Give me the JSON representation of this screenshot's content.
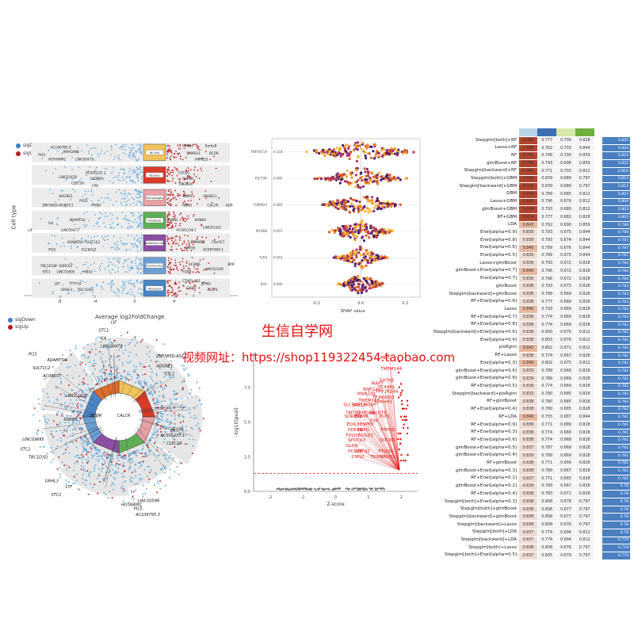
{
  "legend": {
    "down": "sigDown",
    "up": "sigUp",
    "down_color": "#3a7fc1",
    "up_color": "#b01f24"
  },
  "colors": {
    "sig_down": "#6aaee0",
    "sig_up": "#c4282b",
    "accent_red": "#e01010"
  },
  "deg_panel": {
    "ylabel": "Cell type",
    "xlabel": "Average log2FoldChange",
    "xticks": [
      "-8",
      "-4",
      "0",
      "4"
    ],
    "clusters": [
      {
        "name": "NK cells",
        "color": "#f0c35c"
      },
      {
        "name": "Neurons",
        "color": "#d93b2b"
      },
      {
        "name": "Macrophages",
        "color": "#e8a2a7"
      },
      {
        "name": "Fibroblasts",
        "color": "#5fae57"
      },
      {
        "name": "Endothelial cells",
        "color": "#8a4fa3"
      },
      {
        "name": "Chondrocytes",
        "color": "#6a9fd4"
      },
      {
        "name": "Astrocytes",
        "color": "#4a86c7"
      }
    ],
    "labels": [
      [
        "AC106795.3",
        0.13,
        0.04
      ],
      [
        "PI15",
        0.07,
        0.09
      ],
      [
        "HOTAIRM1",
        0.12,
        0.12
      ],
      [
        "ARHGAP8",
        0.19,
        0.07
      ],
      [
        "LINC00473",
        0.25,
        0.12
      ],
      [
        "PRPN4",
        0.77,
        0.03
      ],
      [
        "Sorbs8",
        0.88,
        0.03
      ],
      [
        "SAMD11",
        0.79,
        0.08
      ],
      [
        "BCOR",
        0.9,
        0.08
      ],
      [
        "AMPL22",
        0.83,
        0.12
      ],
      [
        "LINC02470",
        0.17,
        0.24
      ],
      [
        "AC005237.1",
        0.3,
        0.21
      ],
      [
        "CADPS5",
        0.32,
        0.25
      ],
      [
        "CLEC2A",
        0.23,
        0.28
      ],
      [
        "CPB",
        0.33,
        0.3
      ],
      [
        "CXCD1",
        0.75,
        0.21
      ],
      [
        "RHPN1",
        0.77,
        0.25
      ],
      [
        "TMEM26",
        0.75,
        0.29
      ],
      [
        "ADGRE1",
        0.17,
        0.37
      ],
      [
        "PI15",
        0.27,
        0.4
      ],
      [
        "ZNF385D-AS1",
        0.09,
        0.43
      ],
      [
        "STC1",
        0.2,
        0.43
      ],
      [
        "THBD",
        0.33,
        0.43
      ],
      [
        "TRIP6",
        0.77,
        0.37
      ],
      [
        "ABHD11",
        0.87,
        0.37
      ],
      [
        "RBM2",
        0.77,
        0.43
      ],
      [
        "CALCR",
        0.89,
        0.43
      ],
      [
        "ADR",
        0.98,
        0.43
      ],
      [
        "ADAMTS4",
        0.22,
        0.53
      ],
      [
        "IL6",
        0.12,
        0.55
      ],
      [
        "LIF",
        0.02,
        0.6
      ],
      [
        "LINC00473",
        0.18,
        0.6
      ],
      [
        "KANK4",
        0.83,
        0.53
      ],
      [
        "LINC01322",
        0.87,
        0.58
      ],
      [
        "ABHD",
        0.7,
        0.53
      ],
      [
        "AC005238.1",
        0.74,
        0.6
      ],
      [
        "ADAMTS4",
        0.21,
        0.68
      ],
      [
        "SULT1C2",
        0.3,
        0.68
      ],
      [
        "PI15",
        0.12,
        0.73
      ],
      [
        "SLC6A17",
        0.28,
        0.73
      ],
      [
        "TMEM56",
        0.81,
        0.68
      ],
      [
        "C5orf17",
        0.91,
        0.68
      ],
      [
        "SRP19",
        0.78,
        0.72
      ],
      [
        "AC097460.1",
        0.87,
        0.73
      ],
      [
        "TBC1D3D",
        0.08,
        0.84
      ],
      [
        "SORCS3",
        0.17,
        0.84
      ],
      [
        "STC1",
        0.09,
        0.88
      ],
      [
        "LINC01695",
        0.16,
        0.88
      ],
      [
        "HBA2",
        0.29,
        0.88
      ],
      [
        "ACSM5",
        0.8,
        0.83
      ],
      [
        "LINC02249",
        0.88,
        0.86
      ],
      [
        "BMF",
        0.99,
        0.83
      ],
      [
        "FOXB",
        0.77,
        0.88
      ],
      [
        "LTF",
        0.15,
        0.96
      ],
      [
        "TTTY10",
        0.22,
        0.96
      ],
      [
        "GRHL3",
        0.18,
        1.0
      ],
      [
        "TBC1D3D",
        0.26,
        1.0
      ],
      [
        "CTAP1-AS1",
        0.77,
        0.94
      ],
      [
        "JEFN3",
        0.86,
        0.96
      ],
      [
        "CHYB",
        0.79,
        0.99
      ],
      [
        "ZGLP1",
        0.89,
        1.0
      ]
    ]
  },
  "shap_panel": {
    "xlabel": "SHAP value",
    "xticks": [
      "-0.2",
      "0.0",
      "0.2"
    ],
    "features": [
      {
        "name": "TNFRSF1A",
        "value": "0.118"
      },
      {
        "name": "RICTOR",
        "value": "0.095"
      },
      {
        "name": "TOMM20",
        "value": "0.083"
      },
      {
        "name": "MYD88",
        "value": "0.057"
      },
      {
        "name": "TLR4",
        "value": "0.053"
      },
      {
        "name": "BAX",
        "value": "0.040"
      }
    ]
  },
  "heatmap_panel": {
    "header_colors": [
      "#b8d3e8",
      "#3e6fb0",
      "#d6e9a8",
      "#6fae3f"
    ],
    "rows": [
      [
        "Stepglm[both]+RF",
        "0.989",
        "0.777",
        "0.709",
        "0.828",
        "0.825"
      ],
      [
        "Lasso+RF",
        "0.988",
        "0.762",
        "0.703",
        "0.844",
        "0.824"
      ],
      [
        "RF",
        "0.991",
        "0.746",
        "0.700",
        "0.859",
        "0.824"
      ],
      [
        "glmBoost+RF",
        "0.989",
        "0.743",
        "0.696",
        "0.859",
        "0.822"
      ],
      [
        "Stepglm[backward]+RF",
        "0.987",
        "0.771",
        "0.703",
        "0.812",
        "0.818"
      ],
      [
        "Stepglm[both]+GBM",
        "0.928",
        "0.839",
        "0.689",
        "0.797",
        "0.813"
      ],
      [
        "Stepglm[backward]+GBM",
        "0.928",
        "0.839",
        "0.689",
        "0.797",
        "0.812"
      ],
      [
        "GBM",
        "0.939",
        "0.789",
        "0.685",
        "0.812",
        "0.807"
      ],
      [
        "Lasso+GBM",
        "0.933",
        "0.796",
        "0.676",
        "0.812",
        "0.804"
      ],
      [
        "glmBoost+GBM",
        "0.924",
        "0.793",
        "0.680",
        "0.812",
        "0.803"
      ],
      [
        "RF+GBM",
        "0.924",
        "0.777",
        "0.682",
        "0.828",
        "0.803"
      ],
      [
        "LDA",
        "0.843",
        "0.762",
        "0.690",
        "0.859",
        "0.788"
      ],
      [
        "Enet[alpha=0.9]",
        "0.839",
        "0.793",
        "0.675",
        "0.844",
        "0.788"
      ],
      [
        "Enet[alpha=0.8]",
        "0.839",
        "0.793",
        "0.674",
        "0.844",
        "0.787"
      ],
      [
        "Enet[alpha=0.6]",
        "0.840",
        "0.789",
        "0.676",
        "0.844",
        "0.787"
      ],
      [
        "Enet[alpha=0.5]",
        "0.839",
        "0.789",
        "0.675",
        "0.844",
        "0.787"
      ],
      [
        "Lasso+glmBoost",
        "0.839",
        "0.793",
        "0.672",
        "0.828",
        "0.784"
      ],
      [
        "glmBoost+Enet[alpha=0.7]",
        "0.840",
        "0.796",
        "0.672",
        "0.828",
        "0.784"
      ],
      [
        "Enet[alpha=0.7]",
        "0.839",
        "0.796",
        "0.672",
        "0.828",
        "0.784"
      ],
      [
        "glmBoost",
        "0.838",
        "0.793",
        "0.673",
        "0.828",
        "0.783"
      ],
      [
        "Stepglm[backward]+glmBoost",
        "0.838",
        "0.789",
        "0.669",
        "0.828",
        "0.783"
      ],
      [
        "RF+Enet[alpha=0.6]",
        "0.838",
        "0.777",
        "0.668",
        "0.828",
        "0.783"
      ],
      [
        "Lasso",
        "0.840",
        "0.793",
        "0.669",
        "0.828",
        "0.783"
      ],
      [
        "RF+Enet[alpha=0.7]",
        "0.838",
        "0.774",
        "0.669",
        "0.828",
        "0.783"
      ],
      [
        "RF+Enet[alpha=0.8]",
        "0.838",
        "0.774",
        "0.669",
        "0.828",
        "0.782"
      ],
      [
        "Stepglm[backward]+Enet[alpha=0.6]",
        "0.838",
        "0.800",
        "0.676",
        "0.812",
        "0.782"
      ],
      [
        "Enet[alpha=0.4]",
        "0.838",
        "0.803",
        "0.676",
        "0.812",
        "0.782"
      ],
      [
        "plsRglm",
        "0.842",
        "0.802",
        "0.671",
        "0.812",
        "0.782"
      ],
      [
        "RF+Lasso",
        "0.838",
        "0.774",
        "0.667",
        "0.828",
        "0.782"
      ],
      [
        "Enet[alpha=0.3]",
        "0.840",
        "0.802",
        "0.675",
        "0.812",
        "0.782"
      ],
      [
        "glmBoost+Enet[alpha=0.6]",
        "0.839",
        "0.789",
        "0.669",
        "0.828",
        "0.782"
      ],
      [
        "glmBoost+Enet[alpha=0.8]",
        "0.839",
        "0.789",
        "0.669",
        "0.828",
        "0.782"
      ],
      [
        "RF+Enet[alpha=0.5]",
        "0.838",
        "0.774",
        "0.669",
        "0.828",
        "0.782"
      ],
      [
        "Stepglm[backward]+plsRglm",
        "0.833",
        "0.780",
        "0.685",
        "0.828",
        "0.782"
      ],
      [
        "RF+glmBoost",
        "0.838",
        "0.780",
        "0.685",
        "0.828",
        "0.782"
      ],
      [
        "RF+Enet[alpha=0.4]",
        "0.838",
        "0.780",
        "0.685",
        "0.828",
        "0.782"
      ],
      [
        "RF+LDA",
        "0.840",
        "0.755",
        "0.687",
        "0.844",
        "0.781"
      ],
      [
        "RF+Enet[alpha=0.9]",
        "0.838",
        "0.771",
        "0.689",
        "0.828",
        "0.781"
      ],
      [
        "RF+Enet[alpha=0.3]",
        "0.838",
        "0.774",
        "0.668",
        "0.828",
        "0.781"
      ],
      [
        "RF+Enet[alpha=0.6]",
        "0.838",
        "0.774",
        "0.668",
        "0.828",
        "0.781"
      ],
      [
        "glmBoost+Enet[alpha=0.5]",
        "0.837",
        "0.787",
        "0.669",
        "0.828",
        "0.781"
      ],
      [
        "glmBoost+Enet[alpha=0.4]",
        "0.839",
        "0.789",
        "0.669",
        "0.828",
        "0.781"
      ],
      [
        "RF+glmBoost",
        "0.838",
        "0.771",
        "0.666",
        "0.828",
        "0.781"
      ],
      [
        "glmBoost+Enet[alpha=0.3]",
        "0.838",
        "0.789",
        "0.667",
        "0.828",
        "0.781"
      ],
      [
        "RF+Enet[alpha=0.2]",
        "0.837",
        "0.771",
        "0.665",
        "0.828",
        "0.781"
      ],
      [
        "glmBoost+Enet[alpha=0.2]",
        "0.838",
        "0.789",
        "0.667",
        "0.828",
        "0.78"
      ],
      [
        "RF+Enet[alpha=0.4]",
        "0.838",
        "0.783",
        "0.671",
        "0.828",
        "0.78"
      ],
      [
        "Stepglm[both]+Enet[alpha=0.3]",
        "0.838",
        "0.808",
        "0.678",
        "0.797",
        "0.78"
      ],
      [
        "Stepglm[both]+glmBoost",
        "0.838",
        "0.808",
        "0.677",
        "0.797",
        "0.78"
      ],
      [
        "Stepglm[backward]+glmBoost",
        "0.838",
        "0.808",
        "0.677",
        "0.797",
        "0.78"
      ],
      [
        "Stepglm[backward]+Lasso",
        "0.838",
        "0.808",
        "0.676",
        "0.797",
        "0.78"
      ],
      [
        "Stepglm[both]+LDA",
        "0.837",
        "0.774",
        "0.694",
        "0.812",
        "0.78"
      ],
      [
        "Stepglm[backward]+LDA",
        "0.837",
        "0.774",
        "0.694",
        "0.812",
        "0.779"
      ],
      [
        "Stepglm[both]+Lasso",
        "0.838",
        "0.808",
        "0.676",
        "0.797",
        "0.779"
      ],
      [
        "Stepglm[both]+Enet[alpha=0.5]",
        "0.837",
        "0.805",
        "0.679",
        "0.797",
        "0.779"
      ]
    ]
  },
  "circos_panel": {
    "labels": [
      [
        "LIF",
        0.5,
        0.03
      ],
      [
        "STC1",
        0.44,
        0.07
      ],
      [
        "IL6",
        0.45,
        0.11
      ],
      [
        "LINC00473",
        0.45,
        0.15
      ],
      [
        "ZNF385D-AS1",
        0.72,
        0.2
      ],
      [
        "PI15",
        0.1,
        0.19
      ],
      [
        "ADAMTS4",
        0.19,
        0.22
      ],
      [
        "SULT1C2",
        0.12,
        0.26
      ],
      [
        "AC09537",
        0.17,
        0.3
      ],
      [
        "ADGRE1",
        0.72,
        0.25
      ],
      [
        "STC1",
        0.76,
        0.29
      ],
      [
        "LINC01322",
        0.28,
        0.4
      ],
      [
        "AC005237.1",
        0.74,
        0.6
      ],
      [
        "CLEC2A",
        0.77,
        0.64
      ],
      [
        "VEGFA",
        0.79,
        0.57
      ],
      [
        "LINC01695",
        0.07,
        0.62
      ],
      [
        "STC1",
        0.06,
        0.67
      ],
      [
        "TBC1D3D",
        0.1,
        0.71
      ],
      [
        "GRHL3",
        0.18,
        0.83
      ],
      [
        "STC1",
        0.21,
        0.9
      ],
      [
        "LTF",
        0.28,
        0.86
      ],
      [
        "HOTAIRM1",
        0.55,
        0.95
      ],
      [
        "LINC00598",
        0.63,
        0.93
      ],
      [
        "PI15",
        0.61,
        0.97
      ],
      [
        "AC106795.3",
        0.62,
        1.0
      ],
      [
        "CALCR",
        0.53,
        0.5
      ],
      [
        "BCOR",
        0.4,
        0.5
      ],
      [
        "SORBS",
        0.27,
        0.52
      ]
    ]
  },
  "volcano_panel": {
    "ylabel": "-log10(pval)",
    "xlabel": "Z-score",
    "xticks": [
      "-2",
      "-1",
      "0",
      "1",
      "2"
    ],
    "yticks": [
      "0.0",
      "2.5",
      "5.0",
      "7.5"
    ],
    "genes": [
      [
        "MRT",
        0.9,
        0.0
      ],
      [
        "TMEM144",
        0.9,
        0.1
      ],
      [
        "SHTN1",
        0.89,
        0.2
      ],
      [
        "MAP7",
        0.82,
        0.23
      ],
      [
        "TC44A1",
        0.88,
        0.26
      ],
      [
        "RNF220",
        0.75,
        0.28
      ],
      [
        "PPP1R14A",
        0.86,
        0.3
      ],
      [
        "MANZA1",
        0.7,
        0.32
      ],
      [
        "TF",
        0.83,
        0.35
      ],
      [
        "AKAIN2",
        0.88,
        0.35
      ],
      [
        "TMEM165",
        0.71,
        0.38
      ],
      [
        "LEKHH1",
        0.85,
        0.39
      ],
      [
        "SLC5A11",
        0.58,
        0.42
      ],
      [
        "RAPL1",
        0.66,
        0.42
      ],
      [
        "MOBP",
        0.75,
        0.42
      ],
      [
        "TMTC2",
        0.6,
        0.49
      ],
      [
        "FRMD4B",
        0.69,
        0.49
      ],
      [
        "GALNT6",
        0.8,
        0.49
      ],
      [
        "SORBS1",
        0.59,
        0.52
      ],
      [
        "ERMN",
        0.68,
        0.52
      ],
      [
        "PLP1",
        0.89,
        0.52
      ],
      [
        "EDIL3",
        0.61,
        0.59
      ],
      [
        "ENPP2",
        0.72,
        0.59
      ],
      [
        "PXK",
        0.81,
        0.56
      ],
      [
        "PDE4B",
        0.62,
        0.64
      ],
      [
        "CAPG",
        0.7,
        0.64
      ],
      [
        "PTPRD",
        0.9,
        0.64
      ],
      [
        "FOLH1",
        0.6,
        0.69
      ],
      [
        "SUSD1",
        0.71,
        0.69
      ],
      [
        "SPOCK3",
        0.62,
        0.73
      ],
      [
        "DOCK5",
        0.89,
        0.73
      ],
      [
        "GLDN",
        0.6,
        0.78
      ],
      [
        "PCSK6",
        0.62,
        0.83
      ],
      [
        "CNTN2",
        0.68,
        0.83
      ],
      [
        "PTGDS",
        0.88,
        0.83
      ],
      [
        "CMN2",
        0.65,
        0.88
      ],
      [
        "TRIM2",
        0.81,
        0.88
      ],
      [
        "PALM2",
        0.9,
        0.88
      ]
    ]
  },
  "watermark": {
    "line1": "生信自学网",
    "line2": "视频网址：https://shop119322454.taobao.com"
  }
}
